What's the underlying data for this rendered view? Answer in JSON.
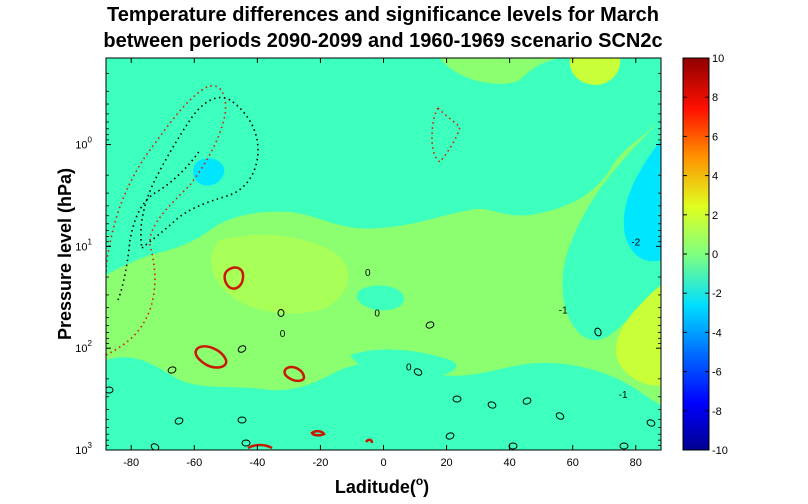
{
  "chart_data": {
    "type": "contour",
    "title_line1": "Temperature differences and significance levels for March",
    "title_line2": "between periods 2090-2099 and 1960-1969 scenario SCN2c",
    "xlabel": "Laditude(",
    "xlabel_sup": "o",
    "xlabel_end": ")",
    "ylabel": "Pressure level (hPa)",
    "x_range": [
      -88,
      88
    ],
    "x_ticks": [
      -80,
      -60,
      -40,
      -20,
      0,
      20,
      40,
      60,
      80
    ],
    "y_log_range": [
      -0.85,
      3
    ],
    "y_ticks": [
      {
        "base": "10",
        "exp": "0",
        "value": 1
      },
      {
        "base": "10",
        "exp": "1",
        "value": 10
      },
      {
        "base": "10",
        "exp": "2",
        "value": 100
      },
      {
        "base": "10",
        "exp": "3",
        "value": 1000
      }
    ],
    "colorbar": {
      "range": [
        -10,
        10
      ],
      "ticks": [
        "10",
        "8",
        "6",
        "4",
        "2",
        "0",
        "-2",
        "-4",
        "-6",
        "-8",
        "-10"
      ],
      "colors": [
        "#00008f",
        "#0000ff",
        "#0060ff",
        "#00c0ff",
        "#40ffbf",
        "#8fff70",
        "#cfff30",
        "#ffe000",
        "#ff8000",
        "#ff2000",
        "#8f0000"
      ]
    },
    "contour_labels": [
      {
        "text": "0",
        "x": -5,
        "logp": 1.25
      },
      {
        "text": "0",
        "x": -2,
        "logp": 1.65
      },
      {
        "text": "0",
        "x": -32,
        "logp": 1.85
      },
      {
        "text": "0",
        "x": 8,
        "logp": 2.18
      },
      {
        "text": "-2",
        "x": 80,
        "logp": 0.95
      },
      {
        "text": "-1",
        "x": 57,
        "logp": 1.62
      },
      {
        "text": "-1",
        "x": 76,
        "logp": 2.45
      }
    ]
  }
}
